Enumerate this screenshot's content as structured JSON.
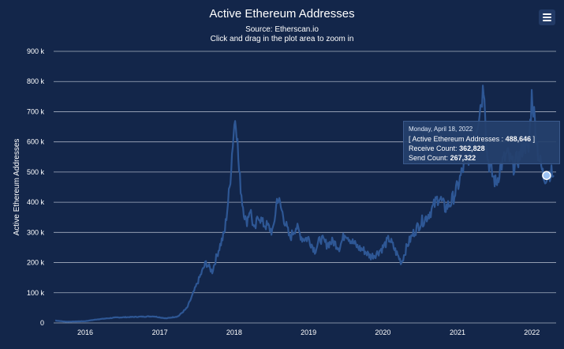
{
  "header": {
    "title": "Active Ethereum Addresses",
    "subtitle_source": "Source: Etherscan.io",
    "subtitle_hint": "Click and drag in the plot area to zoom in",
    "menu_icon": "hamburger-menu-icon"
  },
  "tooltip": {
    "date": "Monday, April 18, 2022",
    "active_label": "Active Ethereum Addresses",
    "active_value": "488,646",
    "receive_label": "Receive Count:",
    "receive_value": "362,828",
    "send_label": "Send Count:",
    "send_value": "267,322"
  },
  "colors": {
    "background": "#13264a",
    "series": "#2e5795",
    "grid": "#c0c8d6",
    "text": "#ffffff"
  },
  "chart_data": {
    "type": "area",
    "title": "Active Ethereum Addresses",
    "ylabel": "Active Ethereum Addresses",
    "xlabel": "",
    "xlim": [
      "2015-07-30",
      "2022-04-30"
    ],
    "ylim": [
      0,
      900000
    ],
    "ytick_values": [
      0,
      100000,
      200000,
      300000,
      400000,
      500000,
      600000,
      700000,
      800000,
      900000
    ],
    "ytick_labels": [
      "0",
      "100 k",
      "200 k",
      "300 k",
      "400 k",
      "500 k",
      "600 k",
      "700 k",
      "800 k",
      "900 k"
    ],
    "xtick_values": [
      "2016-01-01",
      "2017-01-01",
      "2018-01-01",
      "2019-01-01",
      "2020-01-01",
      "2021-01-01",
      "2022-01-01"
    ],
    "xtick_labels": [
      "2016",
      "2017",
      "2018",
      "2019",
      "2020",
      "2021",
      "2022"
    ],
    "grid": true,
    "legend": false,
    "series": [
      {
        "x": [
          "2015-08-07",
          "2015-10-01",
          "2016-01-01",
          "2016-03-01",
          "2016-06-01",
          "2016-09-01",
          "2016-12-01",
          "2017-02-01",
          "2017-04-01",
          "2017-05-15",
          "2017-06-15",
          "2017-07-15",
          "2017-08-15",
          "2017-09-15",
          "2017-10-15",
          "2017-11-15",
          "2017-12-10",
          "2017-12-25",
          "2018-01-08",
          "2018-01-15",
          "2018-01-25",
          "2018-02-10",
          "2018-03-01",
          "2018-03-20",
          "2018-04-10",
          "2018-05-01",
          "2018-05-20",
          "2018-06-15",
          "2018-07-10",
          "2018-08-01",
          "2018-09-01",
          "2018-10-01",
          "2018-11-01",
          "2018-12-01",
          "2019-01-01",
          "2019-02-01",
          "2019-03-01",
          "2019-04-01",
          "2019-05-01",
          "2019-06-01",
          "2019-07-01",
          "2019-08-01",
          "2019-09-01",
          "2019-10-01",
          "2019-11-01",
          "2019-12-01",
          "2020-01-01",
          "2020-02-01",
          "2020-03-01",
          "2020-04-01",
          "2020-05-01",
          "2020-06-01",
          "2020-07-01",
          "2020-08-01",
          "2020-09-01",
          "2020-10-01",
          "2020-11-01",
          "2020-12-01",
          "2021-01-01",
          "2021-02-01",
          "2021-03-01",
          "2021-04-01",
          "2021-05-01",
          "2021-05-12",
          "2021-05-25",
          "2021-06-15",
          "2021-07-10",
          "2021-08-01",
          "2021-09-01",
          "2021-10-01",
          "2021-11-01",
          "2021-11-25",
          "2021-12-15",
          "2022-01-01",
          "2022-02-01",
          "2022-03-01",
          "2022-04-01",
          "2022-04-18"
        ],
        "values": [
          8000,
          4000,
          6000,
          12000,
          18000,
          20000,
          22000,
          15000,
          22000,
          50000,
          100000,
          150000,
          200000,
          170000,
          240000,
          300000,
          450000,
          600000,
          700000,
          620000,
          500000,
          400000,
          330000,
          380000,
          300000,
          360000,
          330000,
          320000,
          300000,
          420000,
          350000,
          280000,
          320000,
          280000,
          280000,
          240000,
          280000,
          260000,
          270000,
          250000,
          300000,
          270000,
          250000,
          240000,
          220000,
          230000,
          250000,
          280000,
          240000,
          200000,
          260000,
          300000,
          330000,
          350000,
          380000,
          420000,
          380000,
          400000,
          450000,
          520000,
          560000,
          640000,
          750000,
          800000,
          560000,
          500000,
          460000,
          520000,
          560000,
          520000,
          550000,
          600000,
          560000,
          760000,
          560000,
          480000,
          500000,
          488646
        ]
      }
    ]
  }
}
